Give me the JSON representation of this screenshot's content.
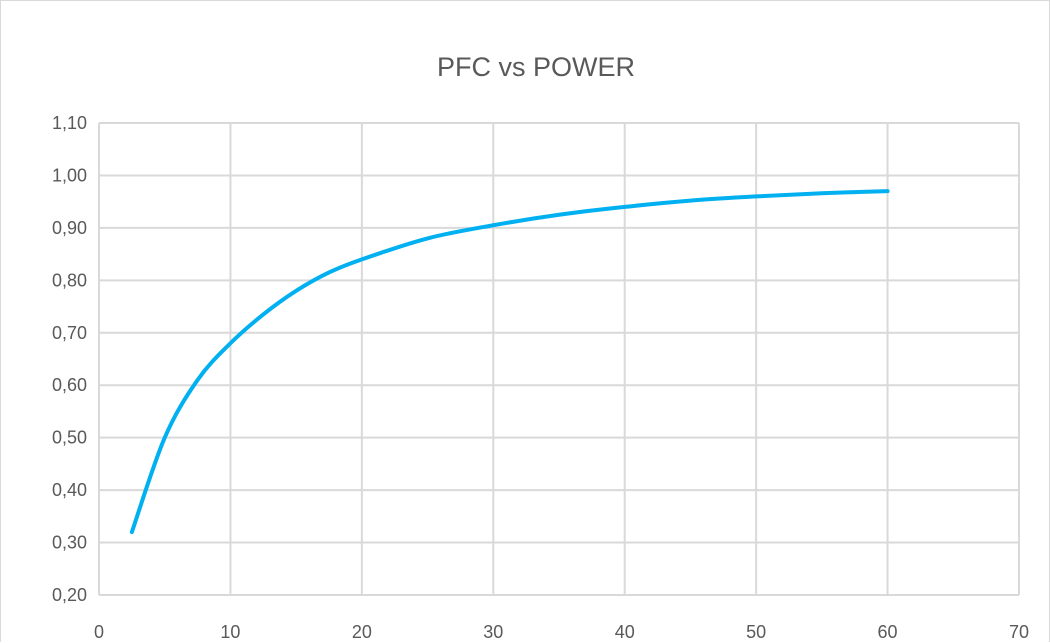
{
  "chart_data": {
    "type": "line",
    "title": "PFC vs POWER",
    "xlabel": "",
    "ylabel": "",
    "xlim": [
      0,
      70
    ],
    "ylim": [
      0.2,
      1.1
    ],
    "x_ticks": [
      "0",
      "10",
      "20",
      "30",
      "40",
      "50",
      "60",
      "70"
    ],
    "y_ticks": [
      "0,20",
      "0,30",
      "0,40",
      "0,50",
      "0,60",
      "0,70",
      "0,80",
      "0,90",
      "1,00",
      "1,10"
    ],
    "grid": true,
    "legend": "none",
    "series": [
      {
        "color": "#00b0f0",
        "x": [
          2.5,
          5,
          7.5,
          10,
          12.5,
          15,
          17.5,
          20,
          25,
          30,
          35,
          40,
          45,
          50,
          55,
          60
        ],
        "y": [
          0.32,
          0.5,
          0.61,
          0.68,
          0.735,
          0.78,
          0.815,
          0.84,
          0.88,
          0.905,
          0.925,
          0.94,
          0.952,
          0.96,
          0.966,
          0.97
        ]
      }
    ]
  }
}
